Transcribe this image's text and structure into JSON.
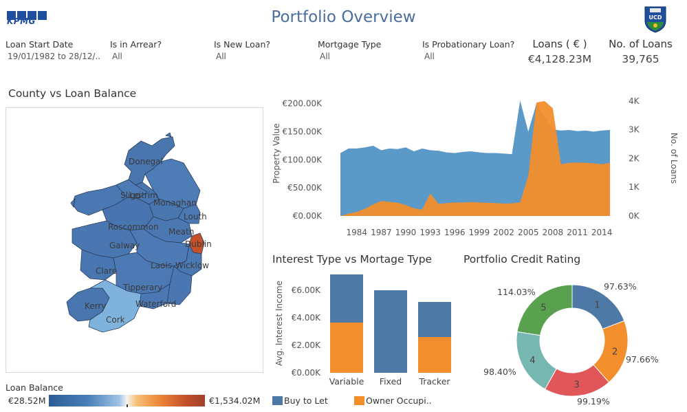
{
  "header": {
    "title": "Portfolio Overview",
    "kpmg_logo": "KPMG",
    "ucd_logo": "UCD"
  },
  "filters": [
    {
      "label": "Loan Start Date",
      "value": "19/01/1982 to 28/12/.."
    },
    {
      "label": "Is in Arrear?",
      "value": "All"
    },
    {
      "label": "Is New Loan?",
      "value": "All"
    },
    {
      "label": "Mortgage Type",
      "value": "All"
    },
    {
      "label": "Is Probationary Loan?",
      "value": "All"
    }
  ],
  "kpis": [
    {
      "label": "Loans ( € )",
      "value": "€4,128.23M"
    },
    {
      "label": "No. of Loans",
      "value": "39,765"
    }
  ],
  "map": {
    "title": "County vs Loan Balance",
    "county_labels": [
      "Donegal",
      "Sligo",
      "Leitrim",
      "Monaghan",
      "Louth",
      "Roscommon",
      "Meath",
      "Dublin",
      "Galway",
      "Laois",
      "Wicklow",
      "Clare",
      "Tipperary",
      "Waterford",
      "Kerry",
      "Cork"
    ],
    "legend": {
      "title": "Loan Balance",
      "min": "€28.52M",
      "max": "€1,534.02M"
    }
  },
  "colors": {
    "blue": "#4e79a7",
    "light_blue": "#7fb3dd",
    "orange": "#f28e2b",
    "dark_orange": "#c5512a",
    "red": "#e15759",
    "teal": "#76b7b2",
    "green": "#59a14f"
  },
  "chart_data": [
    {
      "type": "area",
      "title": "",
      "xlabel": "",
      "ylabel": "Property Value",
      "y2label": "No. of Loans",
      "x": [
        1982,
        1983,
        1984,
        1985,
        1986,
        1987,
        1988,
        1989,
        1990,
        1991,
        1992,
        1993,
        1994,
        1995,
        1996,
        1997,
        1998,
        1999,
        2000,
        2001,
        2002,
        2003,
        2004,
        2005,
        2006,
        2007,
        2008,
        2009,
        2010,
        2011,
        2012,
        2013,
        2014,
        2015
      ],
      "x_tick_labels": [
        "1984",
        "1987",
        "1990",
        "1993",
        "1996",
        "1999",
        "2002",
        "2005",
        "2008",
        "2011",
        "2014"
      ],
      "ylim": [
        0,
        230000
      ],
      "y_ticks": [
        "€0.00K",
        "€50.00K",
        "€100.00K",
        "€150.00K",
        "€200.00K"
      ],
      "y2lim": [
        0,
        4500
      ],
      "y2_ticks": [
        "0K",
        "1K",
        "2K",
        "3K",
        "4K"
      ],
      "series": [
        {
          "name": "Avg. Property Value",
          "values": [
            112000,
            120000,
            120000,
            122000,
            125000,
            117000,
            120000,
            119000,
            122000,
            115000,
            120000,
            117000,
            116000,
            113000,
            112000,
            114000,
            115000,
            113000,
            112000,
            112000,
            111000,
            110000,
            205000,
            150000,
            200000,
            175000,
            154000,
            152000,
            153000,
            151000,
            152000,
            150000,
            152000,
            153000
          ]
        },
        {
          "name": "No. of Loans",
          "values": [
            0,
            80,
            140,
            250,
            400,
            520,
            490,
            460,
            380,
            270,
            220,
            780,
            420,
            450,
            470,
            470,
            480,
            470,
            460,
            450,
            430,
            440,
            470,
            1400,
            3950,
            4000,
            3750,
            1800,
            1850,
            1860,
            1850,
            1830,
            1800,
            1850
          ]
        }
      ]
    },
    {
      "type": "bar",
      "title": "Interest Type vs Mortage Type",
      "xlabel": "",
      "ylabel": "Avg. Interest Income",
      "ylim": [
        0,
        7000
      ],
      "y_ticks": [
        "€0.00K",
        "€2.00K",
        "€4.00K",
        "€6.00K"
      ],
      "categories": [
        "Variable",
        "Fixed",
        "Tracker"
      ],
      "stacked": true,
      "series": [
        {
          "name": "Buy to Let",
          "values": [
            3500,
            6000,
            2550
          ]
        },
        {
          "name": "Owner Occupi..",
          "values": [
            3650,
            0,
            2600
          ]
        }
      ],
      "legend": [
        "Buy to Let",
        "Owner Occupi.."
      ]
    },
    {
      "type": "pie",
      "title": "Portfolio Credit Rating",
      "donut": true,
      "categories": [
        "1",
        "2",
        "3",
        "4",
        "5"
      ],
      "values": [
        97.63,
        97.66,
        99.19,
        98.4,
        114.03
      ],
      "labels": [
        "97.63%",
        "97.66%",
        "99.19%",
        "98.40%",
        "114.03%"
      ]
    }
  ]
}
